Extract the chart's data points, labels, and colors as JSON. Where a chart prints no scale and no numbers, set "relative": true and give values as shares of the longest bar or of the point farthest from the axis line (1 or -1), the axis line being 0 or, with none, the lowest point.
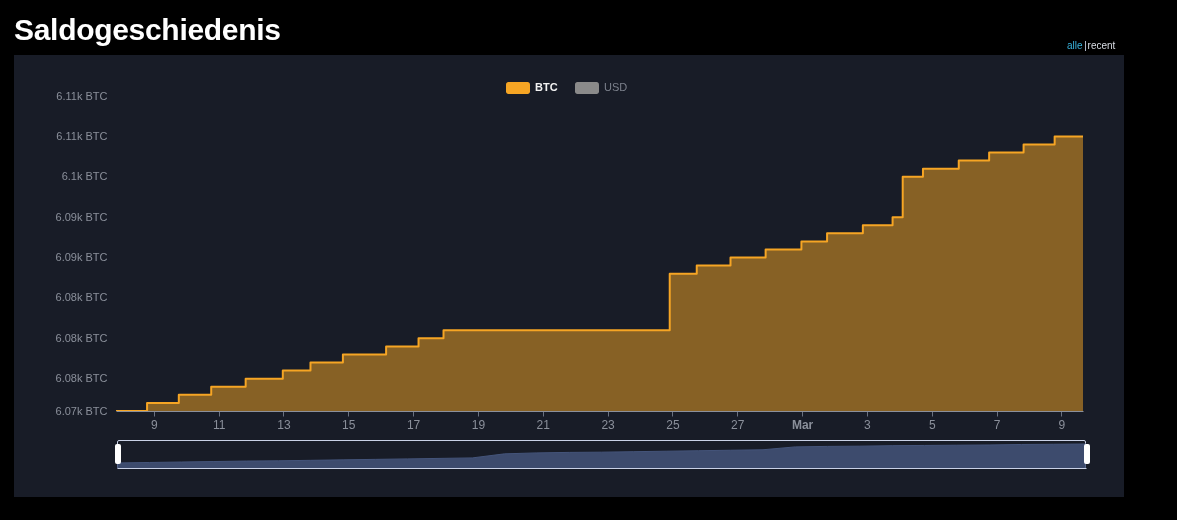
{
  "chart_data": [
    {
      "type": "area",
      "title": "Saldogeschiedenis",
      "annotations": [
        "alle",
        "recent"
      ],
      "legend": "top",
      "x": [
        "--02-07T20:00",
        "--02-08T19:00",
        "--02-08T19:00",
        "--02-09T18:30",
        "--02-09T18:30",
        "--02-10T18:30",
        "--02-10T18:30",
        "--02-11T20:00",
        "--02-11T20:00",
        "--02-12T23:30",
        "--02-12T23:30",
        "--02-13T20:00",
        "--02-13T20:00",
        "--02-14T20:00",
        "--02-14T20:00",
        "--02-16T04:00",
        "--02-16T04:00",
        "--02-17T04:00",
        "--02-17T04:00",
        "--02-17T22:30",
        "--02-17T22:30",
        "--02-24T22:00",
        "--02-24T22:00",
        "--02-25T18:00",
        "--02-25T18:00",
        "--02-26T19:00",
        "--02-26T19:00",
        "--02-27T21:00",
        "--02-27T21:00",
        "--02-28T23:30",
        "--02-28T23:30",
        "--03-01T18:30",
        "--03-01T18:30",
        "--03-02T21:00",
        "--03-02T21:00",
        "--03-03T19:00",
        "--03-03T19:00",
        "--03-04T02:30",
        "--03-04T02:30",
        "--03-04T17:30",
        "--03-04T17:30",
        "--03-05T20:00",
        "--03-05T20:00",
        "--03-06T18:30",
        "--03-06T18:30",
        "--03-07T20:00",
        "--03-07T20:00",
        "--03-08T19:00",
        "--03-08T19:00",
        "--03-09T16:00"
      ],
      "xlim": [
        "--02-07T20:00",
        "--03-09T16:00"
      ],
      "xticks": [
        {
          "value": "--02-09",
          "label": "9"
        },
        {
          "value": "--02-11",
          "label": "11"
        },
        {
          "value": "--02-13",
          "label": "13"
        },
        {
          "value": "--02-15",
          "label": "15"
        },
        {
          "value": "--02-17",
          "label": "17"
        },
        {
          "value": "--02-19",
          "label": "19"
        },
        {
          "value": "--02-21",
          "label": "21"
        },
        {
          "value": "--02-23",
          "label": "23"
        },
        {
          "value": "--02-25",
          "label": "25"
        },
        {
          "value": "--02-27",
          "label": "27"
        },
        {
          "value": "--03-01",
          "label": "Mar"
        },
        {
          "value": "--03-03",
          "label": "3"
        },
        {
          "value": "--03-05",
          "label": "5"
        },
        {
          "value": "--03-07",
          "label": "7"
        },
        {
          "value": "--03-09",
          "label": "9"
        }
      ],
      "ylim": [
        6071,
        6110
      ],
      "yticks": [
        {
          "value": 6071,
          "label": "6.07k BTC"
        },
        {
          "value": 6075,
          "label": "6.08k BTC"
        },
        {
          "value": 6080,
          "label": "6.08k BTC"
        },
        {
          "value": 6085,
          "label": "6.08k BTC"
        },
        {
          "value": 6090,
          "label": "6.09k BTC"
        },
        {
          "value": 6095,
          "label": "6.09k BTC"
        },
        {
          "value": 6100,
          "label": "6.1k BTC"
        },
        {
          "value": 6105,
          "label": "6.11k BTC"
        },
        {
          "value": 6110,
          "label": "6.11k BTC"
        }
      ],
      "series": [
        {
          "name": "BTC",
          "color": "#f6a524",
          "values": [
            6071,
            6071,
            6072,
            6072,
            6073,
            6073,
            6074,
            6074,
            6075,
            6075,
            6076,
            6076,
            6077,
            6077,
            6078,
            6078,
            6079,
            6079,
            6080,
            6080,
            6081,
            6081,
            6088,
            6088,
            6089,
            6089,
            6090,
            6090,
            6091,
            6091,
            6092,
            6092,
            6093,
            6093,
            6094,
            6094,
            6095,
            6095,
            6100,
            6100,
            6101,
            6101,
            6102,
            6102,
            6103,
            6103,
            6104,
            6104,
            6105,
            6105
          ]
        },
        {
          "name": "USD",
          "color": "#8a8a8a",
          "values": [
            null,
            null,
            null,
            null,
            null,
            null,
            null,
            null,
            null,
            null,
            null,
            null,
            null,
            null,
            null,
            null,
            null,
            null,
            null,
            null,
            null,
            null,
            null,
            null,
            null,
            null,
            null,
            null,
            null,
            null,
            null,
            null,
            null,
            null,
            null,
            null,
            null,
            null,
            null,
            null,
            null,
            null,
            null,
            null,
            null,
            null,
            null,
            null,
            null,
            null
          ]
        }
      ]
    },
    {
      "type": "area",
      "relative": true,
      "categories": [
        null,
        null,
        null,
        null,
        null,
        null,
        null,
        null,
        null,
        null,
        null,
        null,
        null,
        null,
        null,
        null,
        null,
        null,
        null,
        null,
        null,
        null,
        null,
        null,
        null,
        null,
        null,
        null,
        null,
        null,
        null
      ],
      "series": [
        {
          "color": "#44547a",
          "values": [
            0.21,
            0.23,
            0.25,
            0.27,
            0.29,
            0.3,
            0.32,
            0.34,
            0.36,
            0.38,
            0.4,
            0.42,
            0.59,
            0.63,
            0.65,
            0.66,
            0.68,
            0.7,
            0.72,
            0.74,
            0.76,
            0.88,
            0.9,
            0.91,
            0.93,
            0.94,
            0.95,
            0.96,
            0.98,
            0.99,
            1
          ]
        }
      ]
    }
  ]
}
